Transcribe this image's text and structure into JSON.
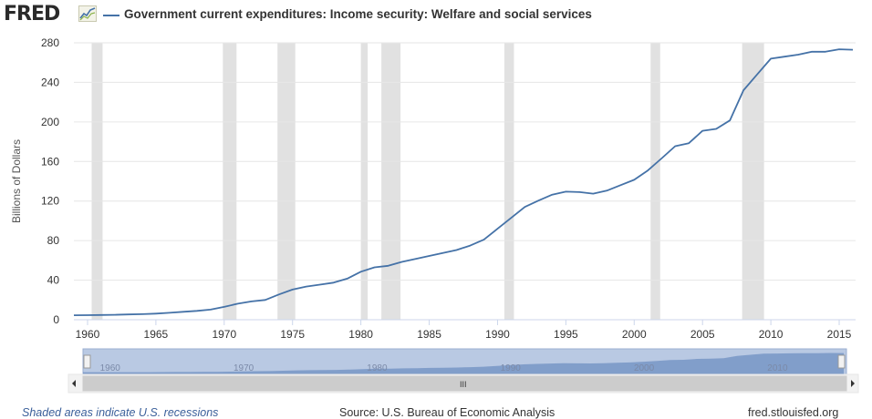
{
  "header": {
    "logo_text": "FRED",
    "series_title": "Government current expenditures: Income security: Welfare and social services"
  },
  "footer": {
    "recession_note": "Shaded areas indicate U.S. recessions",
    "source": "Source: U.S. Bureau of Economic Analysis",
    "site": "fred.stlouisfed.org"
  },
  "navigator": {
    "tick_labels": [
      "1960",
      "1970",
      "1980",
      "1990",
      "2000",
      "2010"
    ],
    "grip": "III"
  },
  "colors": {
    "series": "#4572a7",
    "recession": "#e1e1e1",
    "navigator_fill": "#b9c9e3"
  },
  "chart_data": {
    "type": "line",
    "title": "Government current expenditures: Income security: Welfare and social services",
    "xlabel": "",
    "ylabel": "Billions of Dollars",
    "xlim": [
      1959,
      2016.2
    ],
    "ylim": [
      0,
      280
    ],
    "yticks": [
      0,
      40,
      80,
      120,
      160,
      200,
      240,
      280
    ],
    "xticks": [
      1960,
      1965,
      1970,
      1975,
      1980,
      1985,
      1990,
      1995,
      2000,
      2005,
      2010,
      2015
    ],
    "grid": "horizontal",
    "recessions": [
      [
        1960.3,
        1961.1
      ],
      [
        1969.9,
        1970.9
      ],
      [
        1973.9,
        1975.2
      ],
      [
        1980.0,
        1980.5
      ],
      [
        1981.5,
        1982.9
      ],
      [
        1990.5,
        1991.2
      ],
      [
        2001.2,
        2001.9
      ],
      [
        2007.9,
        2009.5
      ]
    ],
    "series": [
      {
        "name": "Government current expenditures: Income security: Welfare and social services",
        "x": [
          1959,
          1960,
          1961,
          1962,
          1963,
          1964,
          1965,
          1966,
          1967,
          1968,
          1969,
          1970,
          1971,
          1972,
          1973,
          1974,
          1975,
          1976,
          1977,
          1978,
          1979,
          1980,
          1981,
          1982,
          1983,
          1984,
          1985,
          1986,
          1987,
          1988,
          1989,
          1990,
          1991,
          1992,
          1993,
          1994,
          1995,
          1996,
          1997,
          1998,
          1999,
          2000,
          2001,
          2002,
          2003,
          2004,
          2005,
          2006,
          2007,
          2008,
          2009,
          2010,
          2011,
          2012,
          2013,
          2014,
          2015,
          2016
        ],
        "values": [
          4.5,
          4.6,
          4.8,
          5.0,
          5.3,
          5.6,
          6.2,
          7.0,
          8.0,
          8.9,
          10.2,
          13.0,
          16.2,
          18.5,
          20.0,
          25.5,
          30.5,
          33.5,
          35.5,
          37.5,
          41.5,
          48.5,
          53.0,
          54.5,
          58.5,
          61.5,
          64.5,
          67.5,
          70.5,
          75.0,
          81.0,
          92.0,
          103.0,
          114.0,
          120.5,
          126.5,
          129.5,
          129.0,
          127.5,
          130.5,
          136.0,
          141.5,
          151.0,
          163.0,
          175.5,
          178.5,
          191.0,
          193.0,
          201.5,
          232.0,
          248.0,
          264.0,
          266.0,
          268.0,
          271.0,
          271.0,
          273.5,
          273.0
        ]
      }
    ]
  }
}
